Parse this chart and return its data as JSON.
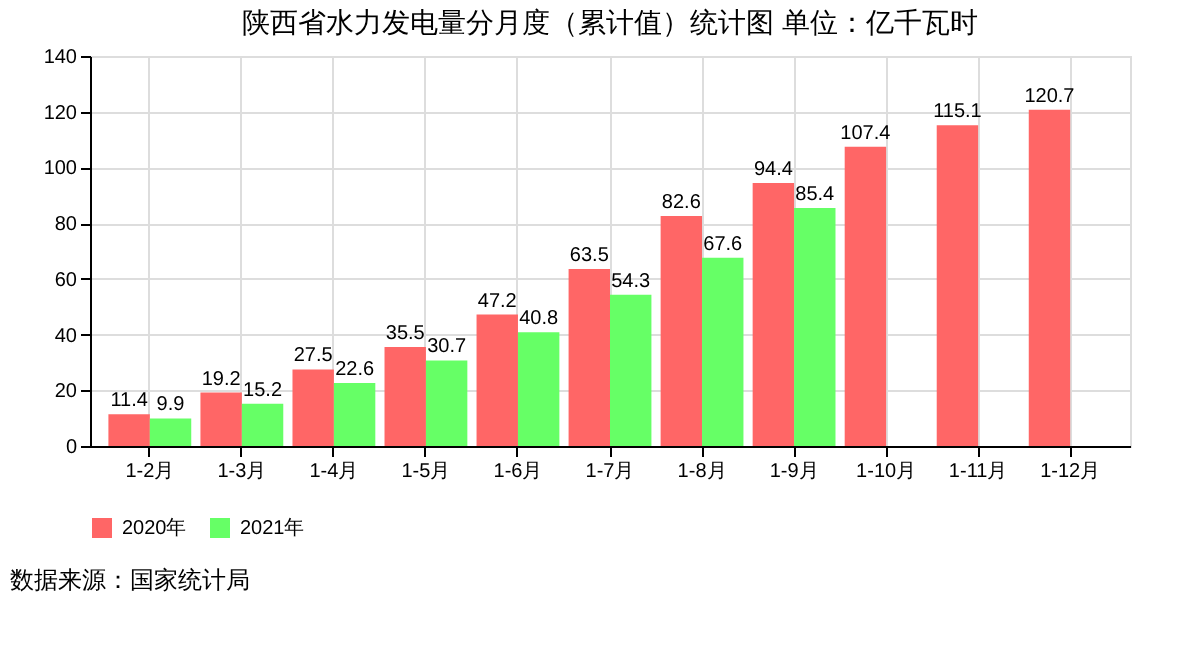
{
  "chart_data": {
    "type": "bar",
    "title": "陕西省水力发电量分月度（累计值）统计图 单位：亿千瓦时",
    "categories": [
      "1-2月",
      "1-3月",
      "1-4月",
      "1-5月",
      "1-6月",
      "1-7月",
      "1-8月",
      "1-9月",
      "1-10月",
      "1-11月",
      "1-12月"
    ],
    "series": [
      {
        "name": "2020年",
        "color": "#ff6666",
        "values": [
          11.4,
          19.2,
          27.5,
          35.5,
          47.2,
          63.5,
          82.6,
          94.4,
          107.4,
          115.1,
          120.7
        ]
      },
      {
        "name": "2021年",
        "color": "#66ff66",
        "values": [
          9.9,
          15.2,
          22.6,
          30.7,
          40.8,
          54.3,
          67.6,
          85.4,
          null,
          null,
          null
        ]
      }
    ],
    "ylim": [
      0,
      140
    ],
    "yticks": [
      0,
      20,
      40,
      60,
      80,
      100,
      120,
      140
    ],
    "grid": true,
    "legend": "bottom",
    "data_labels": true,
    "annotations": [
      "数据来源：国家统计局"
    ]
  }
}
